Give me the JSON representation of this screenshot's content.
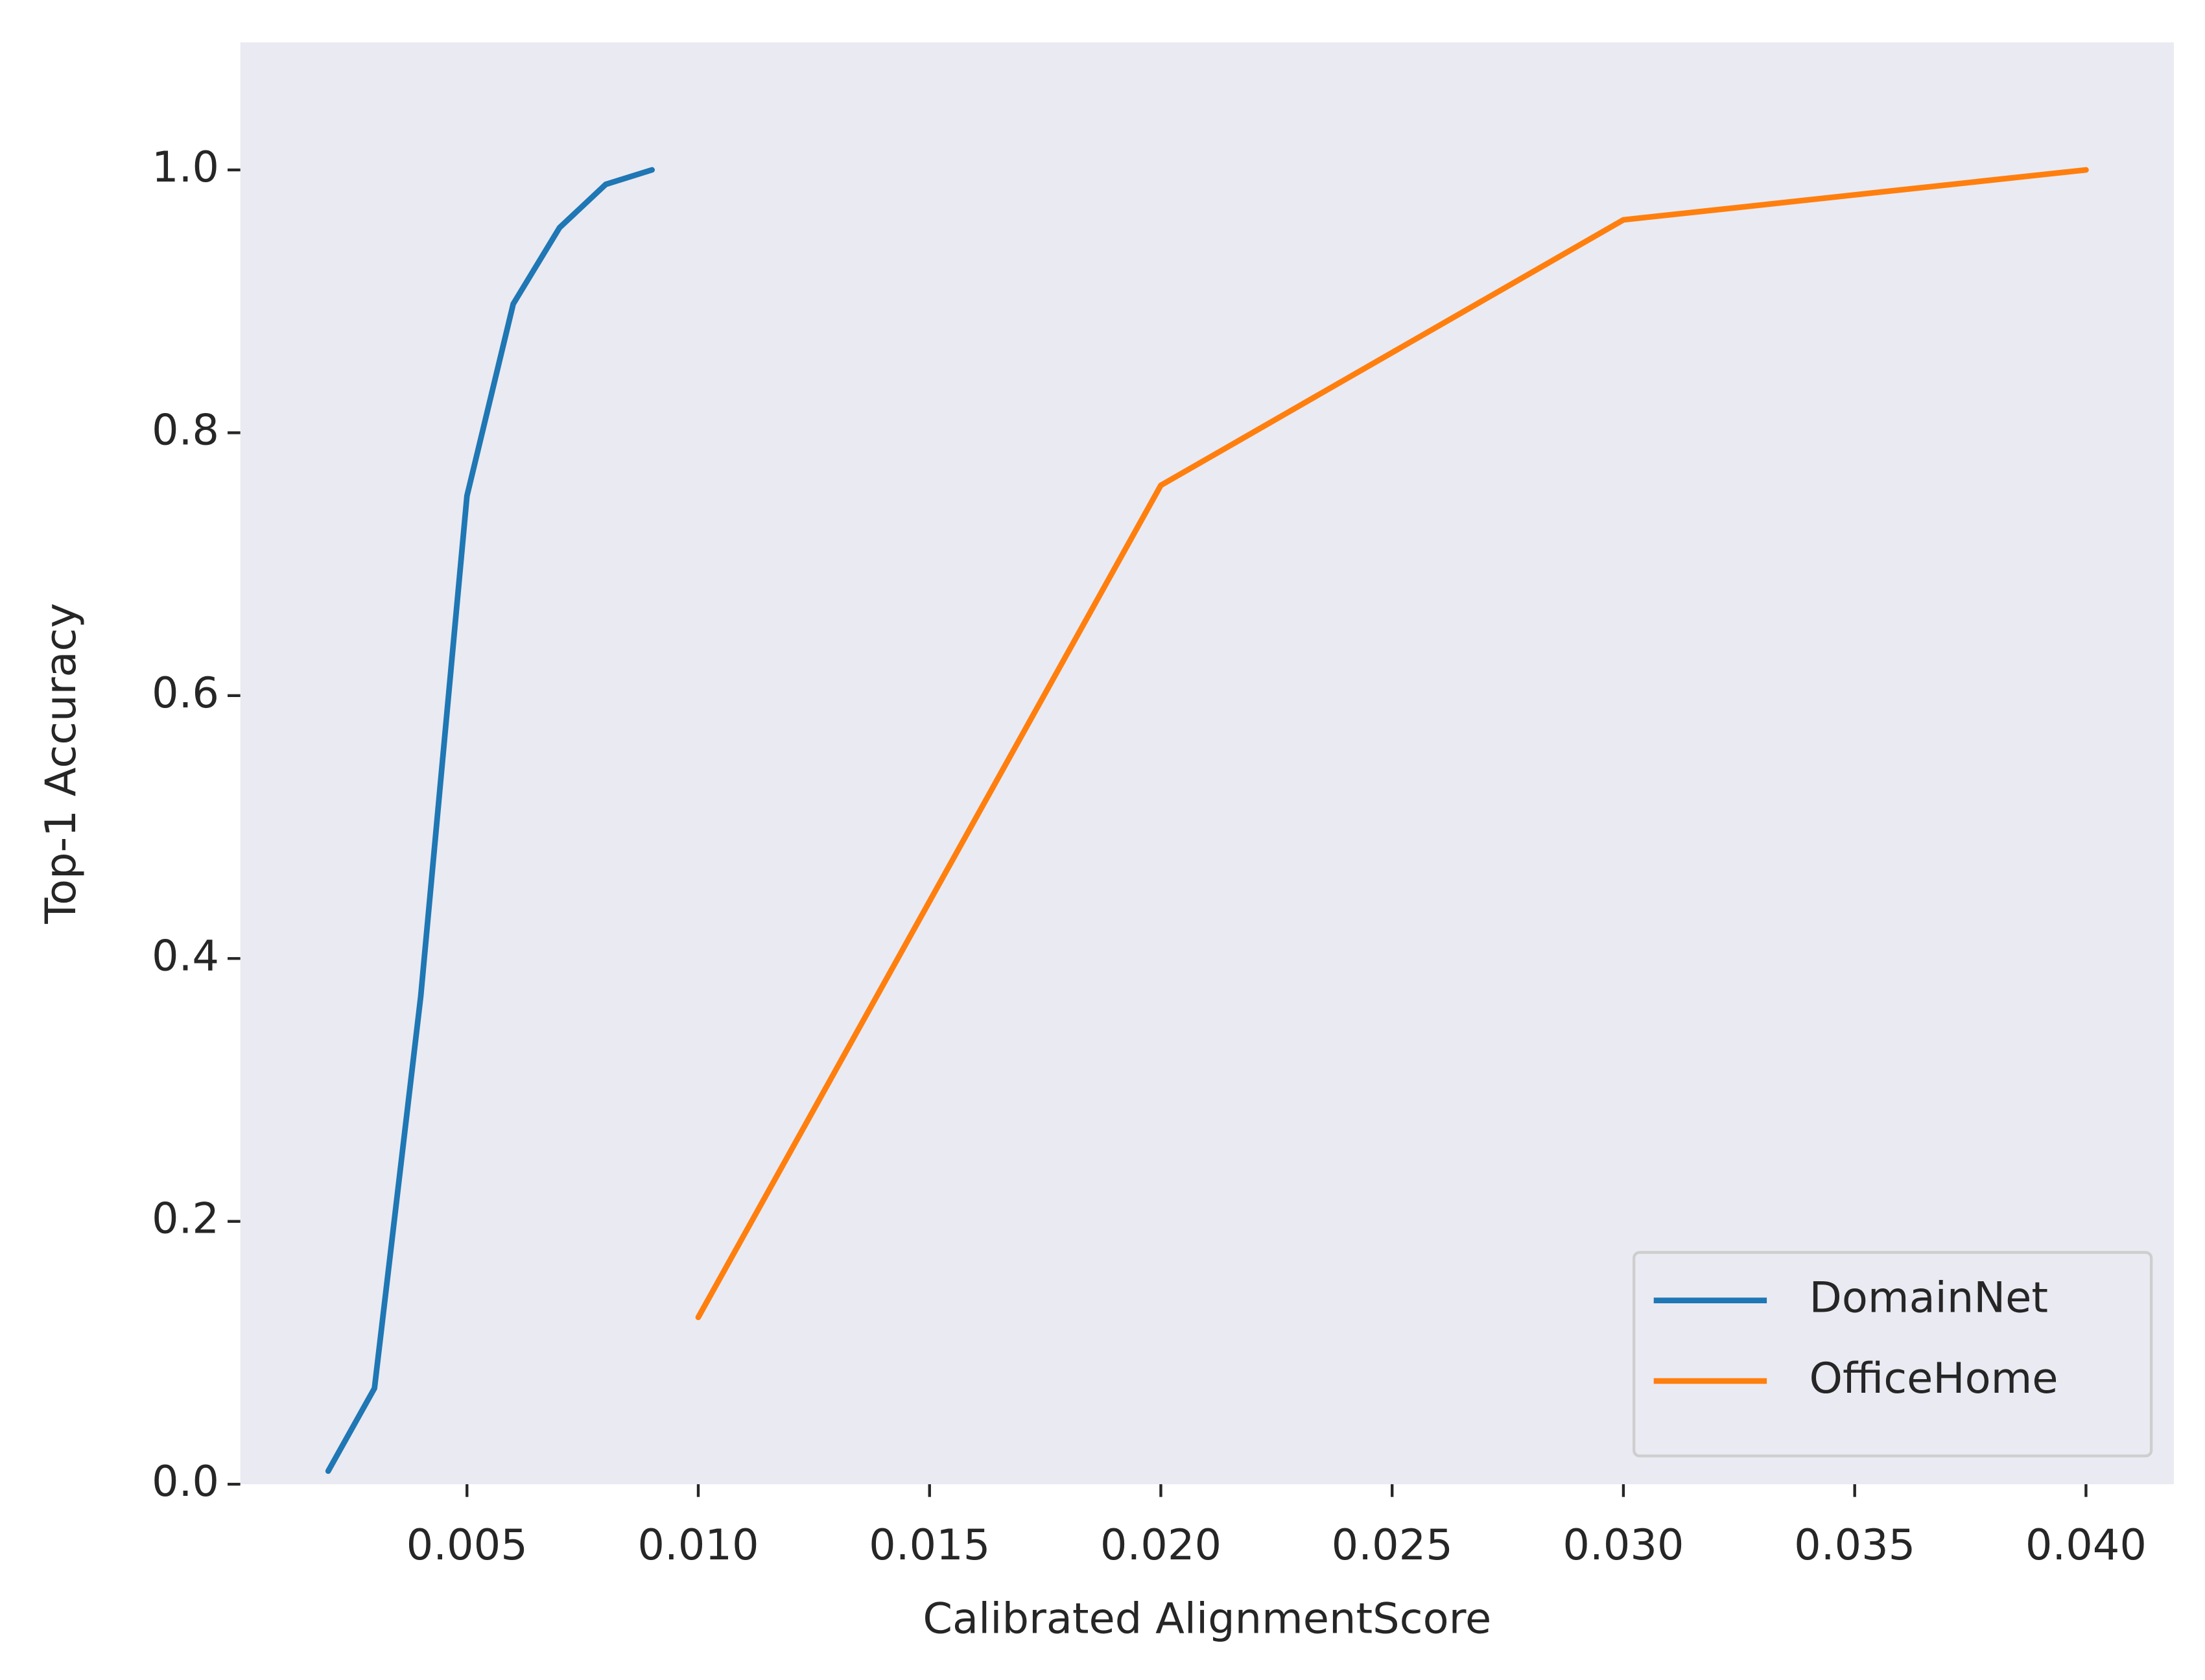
{
  "chart_data": {
    "type": "line",
    "xlabel": "Calibrated AlignmentScore",
    "ylabel": "Top-1 Accuracy",
    "series": [
      {
        "name": "DomainNet",
        "color": "#1f77b4",
        "x": [
          0.002,
          0.003,
          0.004,
          0.005,
          0.006,
          0.007,
          0.008,
          0.009
        ],
        "values": [
          0.01,
          0.073,
          0.371,
          0.752,
          0.898,
          0.956,
          0.989,
          1.0
        ]
      },
      {
        "name": "OfficeHome",
        "color": "#ff7f0e",
        "x": [
          0.01,
          0.02,
          0.03,
          0.04
        ],
        "values": [
          0.127,
          0.76,
          0.962,
          1.0
        ]
      }
    ],
    "xlim": [
      0.0001,
      0.0419
    ],
    "xticks": [
      0.005,
      {
        "value": 0.01,
        "label": "0.010"
      },
      0.015,
      {
        "value": 0.02,
        "label": "0.020"
      },
      0.025,
      {
        "value": 0.03,
        "label": "0.030"
      },
      0.035,
      {
        "value": 0.04,
        "label": "0.040"
      }
    ],
    "ylim": [
      0,
      1.097
    ],
    "yticks": [
      {
        "value": 0,
        "label": "0.0"
      },
      0.2,
      0.4,
      0.6,
      0.8,
      {
        "value": 1,
        "label": "1.0"
      }
    ],
    "grid": false,
    "background": "#eaeaf2",
    "legend": "lower right"
  }
}
